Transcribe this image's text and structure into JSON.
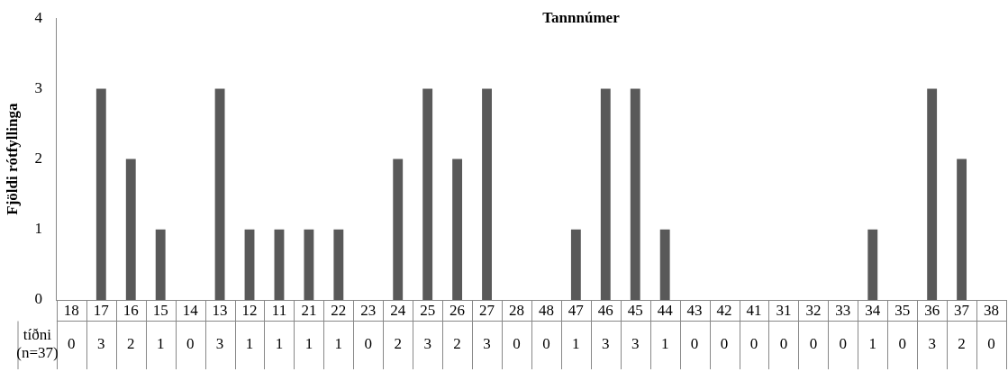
{
  "chart_data": {
    "type": "bar",
    "title": "Tannnúmer",
    "ylabel": "Fjöldi rótfyllinga",
    "categories": [
      "18",
      "17",
      "16",
      "15",
      "14",
      "13",
      "12",
      "11",
      "21",
      "22",
      "23",
      "24",
      "25",
      "26",
      "27",
      "28",
      "48",
      "47",
      "46",
      "45",
      "44",
      "43",
      "42",
      "41",
      "31",
      "32",
      "33",
      "34",
      "35",
      "36",
      "37",
      "38"
    ],
    "series": [
      {
        "name": "tíðni (n=37)",
        "color": "#595959",
        "values": [
          0,
          3,
          2,
          1,
          0,
          3,
          1,
          1,
          1,
          1,
          0,
          2,
          3,
          2,
          3,
          0,
          0,
          1,
          3,
          3,
          1,
          0,
          0,
          0,
          0,
          0,
          0,
          1,
          0,
          3,
          2,
          0
        ]
      }
    ],
    "ylim": [
      0,
      4
    ],
    "yticks": [
      0,
      1,
      2,
      3,
      4
    ],
    "grid": false,
    "legend": false,
    "data_labels": true
  }
}
